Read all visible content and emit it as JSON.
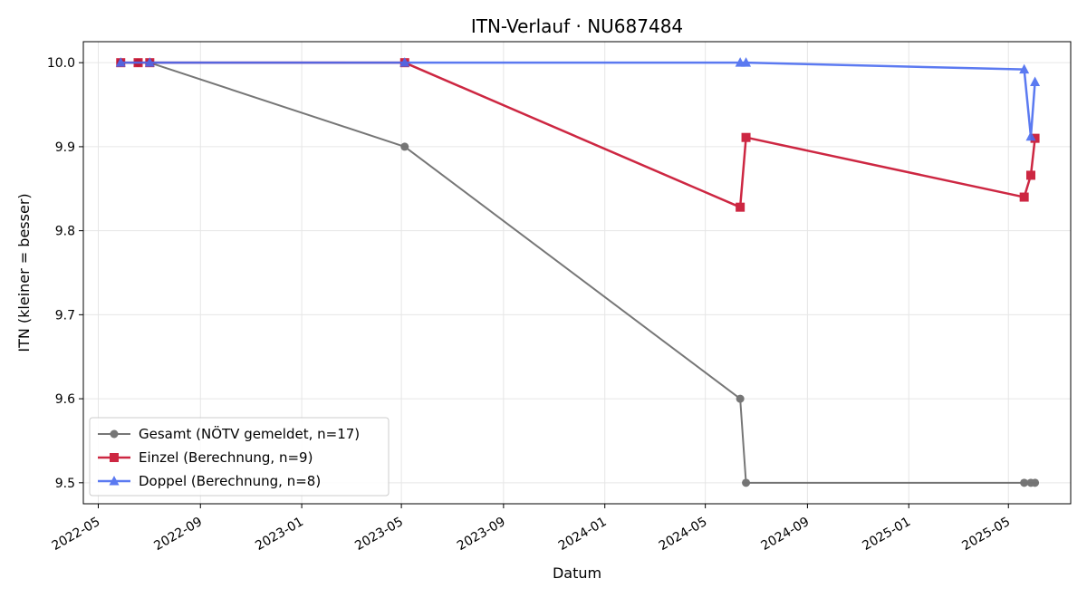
{
  "chart_data": {
    "type": "line",
    "title": "ITN-Verlauf · NU687484",
    "xlabel": "Datum",
    "ylabel": "ITN  (kleiner = besser)",
    "x_ticks": [
      "2022-05",
      "2022-09",
      "2023-01",
      "2023-05",
      "2023-09",
      "2024-01",
      "2024-05",
      "2024-09",
      "2025-01",
      "2025-05"
    ],
    "xlim": [
      "2022-04-13",
      "2025-07-15"
    ],
    "y_ticks": [
      9.5,
      9.6,
      9.7,
      9.8,
      9.9,
      10.0
    ],
    "ylim": [
      9.475,
      10.025
    ],
    "grid": true,
    "legend_position": "lower-left",
    "series": [
      {
        "name": "Gesamt (NÖTV gemeldet, n=17)",
        "color": "#555555",
        "marker": "circle",
        "points": [
          {
            "x": "2022-05-28",
            "y": 10.0
          },
          {
            "x": "2022-06-18",
            "y": 10.0
          },
          {
            "x": "2022-07-02",
            "y": 10.0
          },
          {
            "x": "2023-05-05",
            "y": 9.9
          },
          {
            "x": "2024-06-12",
            "y": 9.6
          },
          {
            "x": "2024-06-19",
            "y": 9.5
          },
          {
            "x": "2025-05-20",
            "y": 9.5
          },
          {
            "x": "2025-05-28",
            "y": 9.5
          },
          {
            "x": "2025-06-02",
            "y": 9.5
          }
        ]
      },
      {
        "name": "Einzel (Berechnung, n=9)",
        "color": "#c8102e",
        "marker": "square",
        "points": [
          {
            "x": "2022-05-28",
            "y": 10.0
          },
          {
            "x": "2022-06-18",
            "y": 10.0
          },
          {
            "x": "2022-07-02",
            "y": 10.0
          },
          {
            "x": "2023-05-05",
            "y": 10.0
          },
          {
            "x": "2024-06-12",
            "y": 9.828
          },
          {
            "x": "2024-06-19",
            "y": 9.911
          },
          {
            "x": "2025-05-20",
            "y": 9.84
          },
          {
            "x": "2025-05-28",
            "y": 9.866
          },
          {
            "x": "2025-06-02",
            "y": 9.91
          }
        ]
      },
      {
        "name": "Doppel (Berechnung, n=8)",
        "color": "#4a6cf0",
        "marker": "triangle",
        "points": [
          {
            "x": "2022-05-28",
            "y": 10.0
          },
          {
            "x": "2022-07-02",
            "y": 10.0
          },
          {
            "x": "2023-05-05",
            "y": 10.0
          },
          {
            "x": "2024-06-12",
            "y": 10.0
          },
          {
            "x": "2024-06-19",
            "y": 10.0
          },
          {
            "x": "2025-05-20",
            "y": 9.992
          },
          {
            "x": "2025-05-28",
            "y": 9.912
          },
          {
            "x": "2025-06-02",
            "y": 9.977
          }
        ]
      }
    ]
  }
}
